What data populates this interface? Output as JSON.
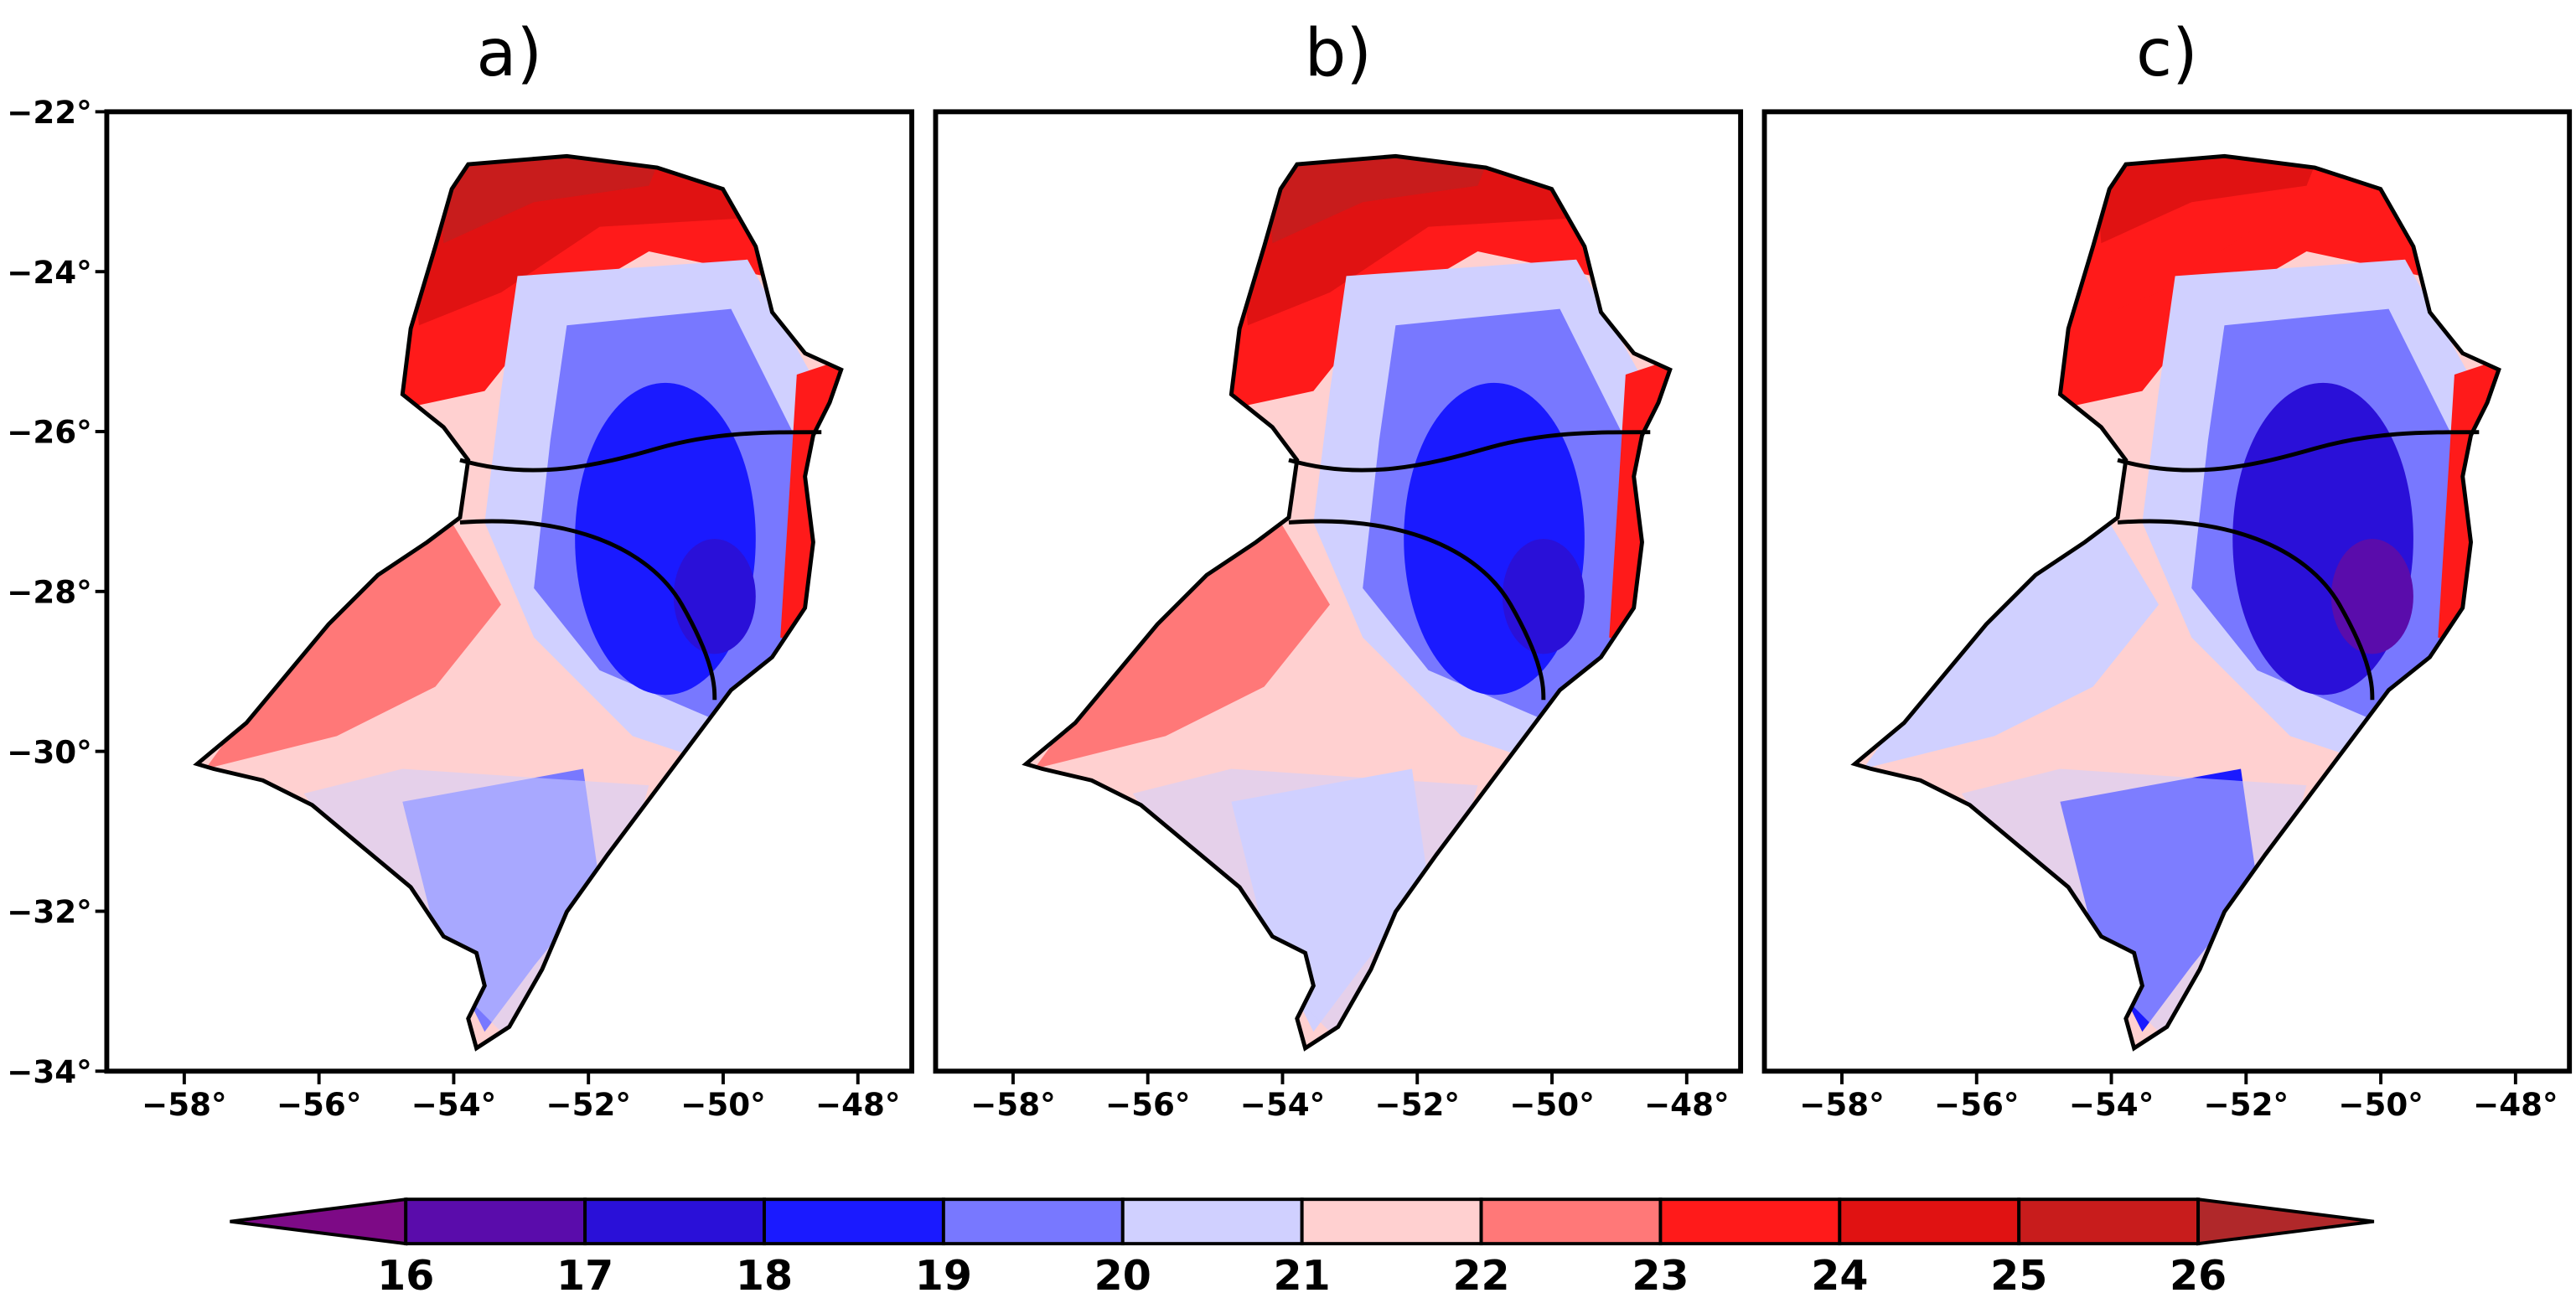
{
  "axes": {
    "xlim": [
      -59.15,
      -47.2
    ],
    "ylim": [
      -34,
      -22
    ],
    "xticks": [
      {
        "value": -58,
        "label": "−58°"
      },
      {
        "value": -56,
        "label": "−56°"
      },
      {
        "value": -54,
        "label": "−54°"
      },
      {
        "value": -52,
        "label": "−52°"
      },
      {
        "value": -50,
        "label": "−50°"
      },
      {
        "value": -48,
        "label": "−48°"
      }
    ],
    "yticks": [
      {
        "value": -22,
        "label": "−22°"
      },
      {
        "value": -24,
        "label": "−24°"
      },
      {
        "value": -26,
        "label": "−26°"
      },
      {
        "value": -28,
        "label": "−28°"
      },
      {
        "value": -30,
        "label": "−30°"
      },
      {
        "value": -32,
        "label": "−32°"
      },
      {
        "value": -34,
        "label": "−34°"
      }
    ]
  },
  "panels": [
    {
      "title": "a)"
    },
    {
      "title": "b)"
    },
    {
      "title": "c)"
    }
  ],
  "colorbar": {
    "levels": [
      16,
      17,
      18,
      19,
      20,
      21,
      22,
      23,
      24,
      25,
      26
    ],
    "colors": [
      "#7d0a86",
      "#5a0cab",
      "#2a10d8",
      "#1a1aff",
      "#7878ff",
      "#d0d0ff",
      "#ffd0d0",
      "#ff7878",
      "#ff1a1a",
      "#e01212",
      "#c81c1c",
      "#b0282a"
    ]
  }
}
